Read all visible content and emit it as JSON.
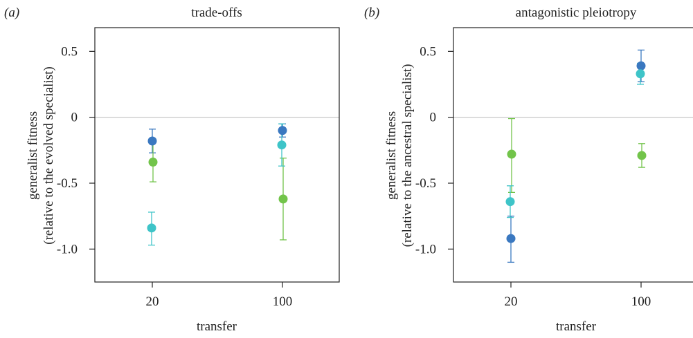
{
  "colors": {
    "blue": "#3a78c0",
    "cyan": "#3ec4c8",
    "green": "#72c44a",
    "zero_line": "#c8c8c8",
    "frame": "#222222"
  },
  "chart_data": [
    {
      "type": "scatter",
      "panel_label": "(a)",
      "title": "trade-offs",
      "xlabel": "transfer",
      "ylabel_line1": "generalist fitness",
      "ylabel_line2": "(relative to the evolved specialist)",
      "categories": [
        "20",
        "100"
      ],
      "yticks": [
        "0.5",
        "0",
        "-0.5",
        "-1.0"
      ],
      "ylim": [
        -1.25,
        0.68
      ],
      "zero_line": true,
      "series": [
        {
          "color": "blue",
          "values": [
            -0.18,
            -0.1
          ],
          "lower": [
            -0.27,
            -0.15
          ],
          "upper": [
            -0.09,
            -0.05
          ]
        },
        {
          "color": "green",
          "values": [
            -0.34,
            -0.62
          ],
          "lower": [
            -0.49,
            -0.93
          ],
          "upper": [
            -0.19,
            -0.31
          ]
        },
        {
          "color": "cyan",
          "values": [
            -0.84,
            -0.21
          ],
          "lower": [
            -0.97,
            -0.37
          ],
          "upper": [
            -0.72,
            -0.05
          ]
        }
      ]
    },
    {
      "type": "scatter",
      "panel_label": "(b)",
      "title": "antagonistic pleiotropy",
      "xlabel": "transfer",
      "ylabel_line1": "generalist fitness",
      "ylabel_line2": "(relative to the ancestral specialist)",
      "categories": [
        "20",
        "100"
      ],
      "yticks": [
        "0.5",
        "0",
        "-0.5",
        "-1.0"
      ],
      "ylim": [
        -1.25,
        0.68
      ],
      "zero_line": true,
      "series": [
        {
          "color": "blue",
          "values": [
            -0.92,
            0.39
          ],
          "lower": [
            -1.1,
            0.27
          ],
          "upper": [
            -0.75,
            0.51
          ]
        },
        {
          "color": "green",
          "values": [
            -0.28,
            -0.29
          ],
          "lower": [
            -0.57,
            -0.38
          ],
          "upper": [
            -0.01,
            -0.2
          ]
        },
        {
          "color": "cyan",
          "values": [
            -0.64,
            0.33
          ],
          "lower": [
            -0.76,
            0.25
          ],
          "upper": [
            -0.52,
            0.41
          ]
        }
      ]
    }
  ]
}
